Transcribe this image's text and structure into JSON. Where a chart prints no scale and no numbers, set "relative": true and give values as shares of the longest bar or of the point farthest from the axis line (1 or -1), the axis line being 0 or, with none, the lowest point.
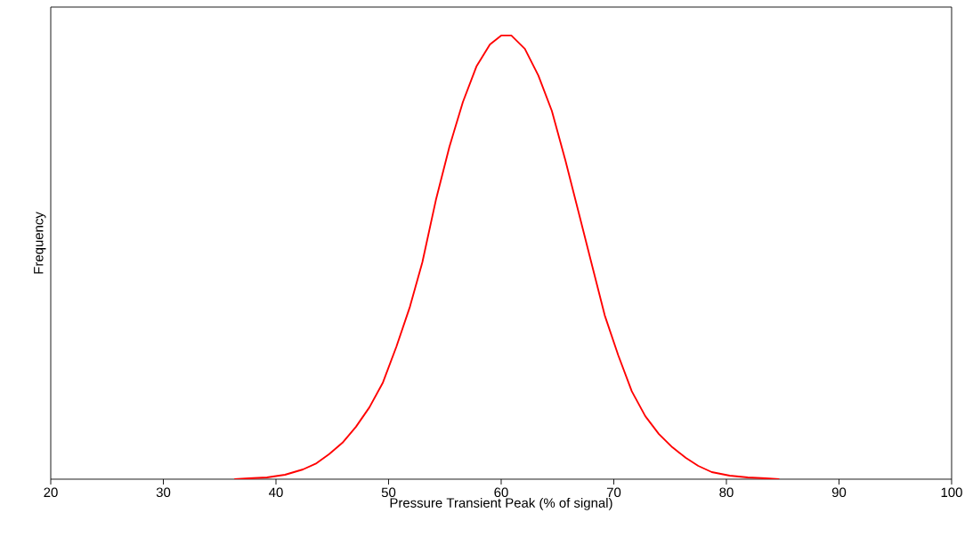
{
  "chart_data": {
    "type": "line",
    "relative": true,
    "xlabel": "Pressure Transient Peak (% of signal)",
    "ylabel": "Frequency",
    "xlim": [
      20,
      100
    ],
    "xticks": [
      20,
      30,
      40,
      50,
      60,
      70,
      80,
      90,
      100
    ],
    "x": [
      36.3,
      37.6,
      39.2,
      40.8,
      42.4,
      43.6,
      44.7,
      45.9,
      47.1,
      48.3,
      49.5,
      50.7,
      51.9,
      53.0,
      54.2,
      55.4,
      56.6,
      57.8,
      59.0,
      60.0,
      60.9,
      62.1,
      63.3,
      64.5,
      65.7,
      66.9,
      68.1,
      69.2,
      70.4,
      71.6,
      72.8,
      74.0,
      75.2,
      76.4,
      77.5,
      78.7,
      80.3,
      81.9,
      83.5,
      84.7
    ],
    "series": [
      {
        "color": "#ff0000",
        "values": [
          0,
          0.002,
          0.004,
          0.01,
          0.022,
          0.036,
          0.056,
          0.082,
          0.118,
          0.162,
          0.218,
          0.299,
          0.389,
          0.489,
          0.629,
          0.749,
          0.85,
          0.93,
          0.98,
          1,
          1,
          0.97,
          0.91,
          0.83,
          0.719,
          0.599,
          0.479,
          0.369,
          0.279,
          0.198,
          0.142,
          0.102,
          0.072,
          0.048,
          0.03,
          0.016,
          0.008,
          0.004,
          0.002,
          0
        ]
      }
    ]
  }
}
